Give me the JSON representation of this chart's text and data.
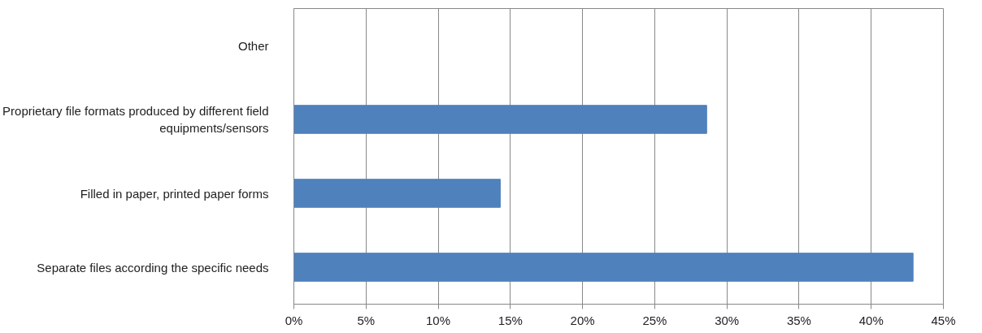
{
  "chart_data": {
    "type": "bar",
    "orientation": "horizontal",
    "categories": [
      "Other",
      "Proprietary file formats produced by different field equipments/sensors",
      "Filled in paper, printed paper forms",
      "Separate files according the specific needs"
    ],
    "values": [
      0,
      28.6,
      14.3,
      42.9
    ],
    "color": "#4f81bd",
    "xlim": [
      0,
      45
    ],
    "xticks": [
      {
        "value": 0,
        "label": "0%"
      },
      {
        "value": 5,
        "label": "5%"
      },
      {
        "value": 10,
        "label": "10%"
      },
      {
        "value": 15,
        "label": "15%"
      },
      {
        "value": 20,
        "label": "20%"
      },
      {
        "value": 25,
        "label": "25%"
      },
      {
        "value": 30,
        "label": "30%"
      },
      {
        "value": 35,
        "label": "35%"
      },
      {
        "value": 40,
        "label": "40%"
      },
      {
        "value": 45,
        "label": "45%"
      }
    ],
    "grid": "x"
  }
}
